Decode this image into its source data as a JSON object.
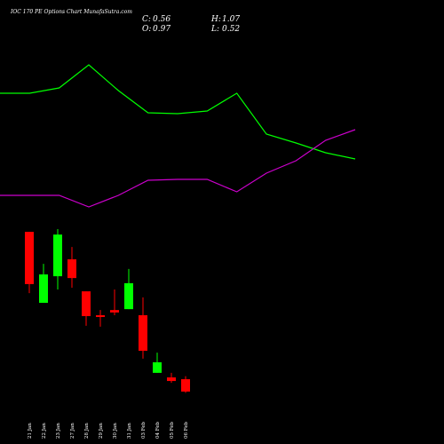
{
  "chart_data": [
    {
      "type": "candlestick",
      "title": "IOC 170 PE Options Chart MunafaSutra.com",
      "summary": [
        {
          "label": "C:",
          "value": 0.56
        },
        {
          "label": "H:",
          "value": 1.07
        },
        {
          "label": "O:",
          "value": 0.97
        },
        {
          "label": "L:",
          "value": 0.52
        }
      ],
      "categories": [
        "21 Jan",
        "22 Jan",
        "23 Jan",
        "27 Jan",
        "28 Jan",
        "29 Jan",
        "30 Jan",
        "31 Jan",
        "03 Feb",
        "04 Feb",
        "05 Feb",
        "06 Feb"
      ],
      "open": [
        5.85,
        3.5,
        4.38,
        4.94,
        3.88,
        3.09,
        3.26,
        3.29,
        3.09,
        1.18,
        1.03,
        0.97
      ],
      "high": [
        5.85,
        4.79,
        5.94,
        5.35,
        3.88,
        3.26,
        3.94,
        4.62,
        3.68,
        1.85,
        1.18,
        1.07
      ],
      "low": [
        3.82,
        3.5,
        3.94,
        4.0,
        2.74,
        2.71,
        3.09,
        3.29,
        1.65,
        1.18,
        0.85,
        0.52
      ],
      "close": [
        4.12,
        4.44,
        5.76,
        4.32,
        3.06,
        3.03,
        3.18,
        4.15,
        1.91,
        1.53,
        0.91,
        0.56
      ],
      "up_color": "#00ff00",
      "down_color": "#ff0000",
      "ylim": [
        0,
        6.2
      ]
    },
    {
      "type": "line",
      "x": [
        0,
        1,
        2,
        3,
        4,
        5,
        6,
        7,
        8,
        9,
        10,
        11,
        12
      ],
      "xlim": [
        0,
        12
      ],
      "ylim": [
        0,
        500
      ],
      "series": [
        {
          "color": "#00ff00",
          "values": [
            395,
            395,
            401,
            427,
            398,
            373,
            372,
            375,
            395,
            349,
            339,
            328,
            321
          ]
        },
        {
          "color": "#cc00cc",
          "values": [
            280,
            280,
            280,
            267,
            280,
            297,
            298,
            298,
            284,
            305,
            319,
            342,
            354
          ]
        }
      ]
    }
  ]
}
